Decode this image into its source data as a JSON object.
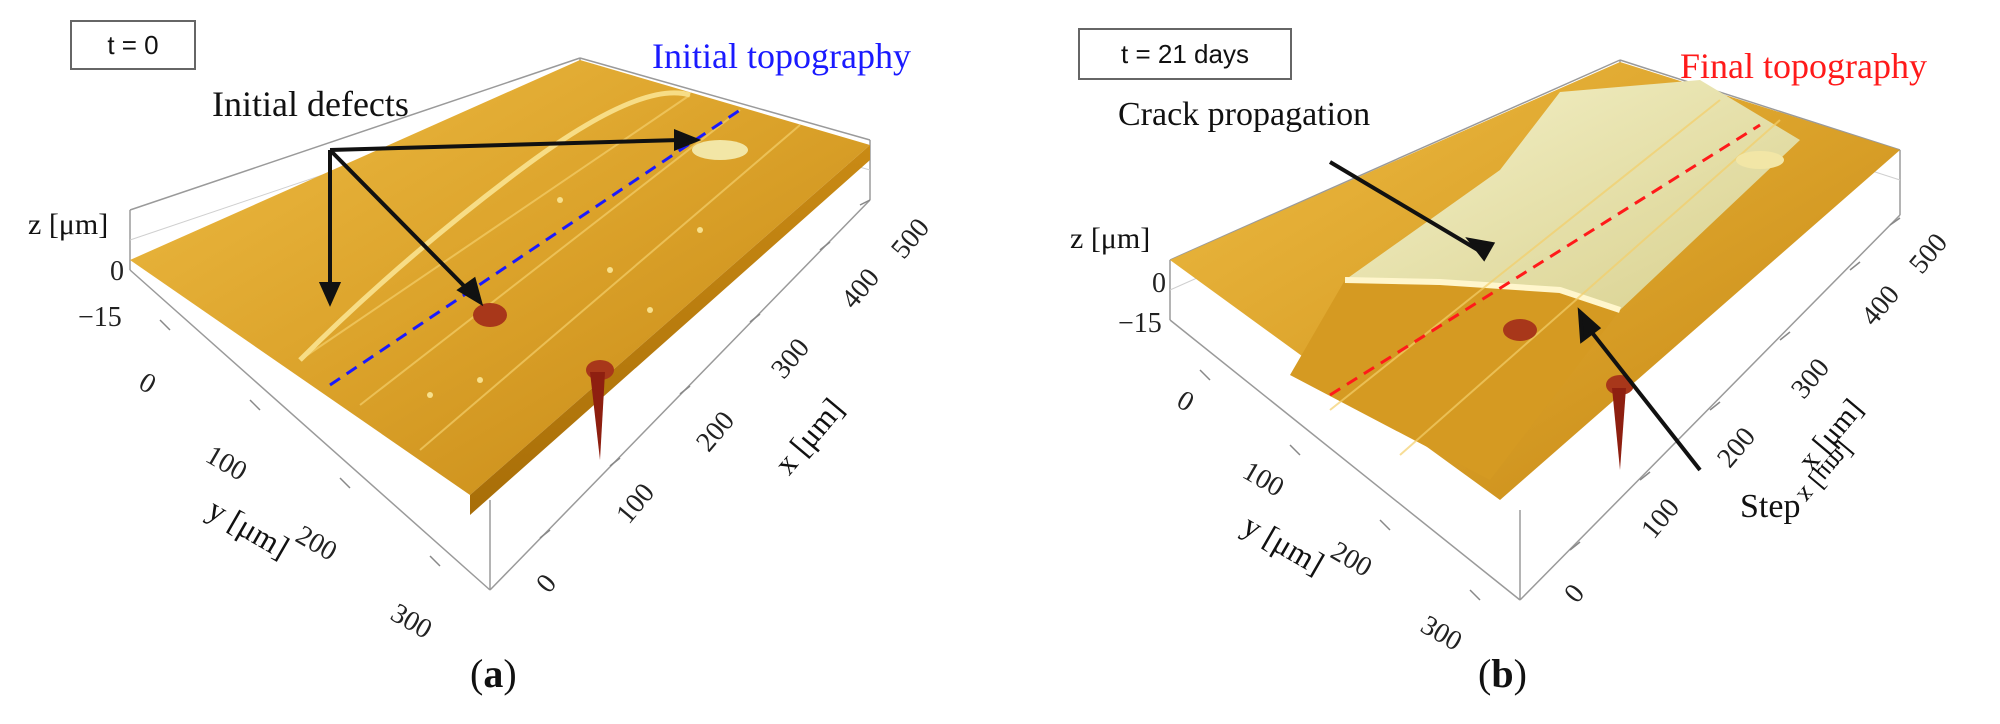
{
  "panels": [
    {
      "time_label": "t = 0",
      "topo_label": "Initial topography",
      "topo_color": "#1a1aff",
      "annotations": [
        "Initial defects"
      ],
      "z_axis": {
        "label": "z [μm]",
        "ticks": [
          "0",
          "−15"
        ]
      },
      "y_axis": {
        "label": "y [μm]",
        "ticks": [
          "0",
          "100",
          "200",
          "300"
        ]
      },
      "x_axis": {
        "label": "x [μm]",
        "ticks": [
          "0",
          "100",
          "200",
          "300",
          "400",
          "500"
        ]
      },
      "caption_letter": "a"
    },
    {
      "time_label": "t = 21 days",
      "topo_label": "Final topography",
      "topo_color": "#ff1a1a",
      "annotations": [
        "Crack propagation",
        "Step"
      ],
      "z_axis": {
        "label": "z [μm]",
        "ticks": [
          "0",
          "−15"
        ]
      },
      "y_axis": {
        "label": "y [μm]",
        "ticks": [
          "0",
          "100",
          "200",
          "300"
        ]
      },
      "x_axis": {
        "label": "x [μm]",
        "ticks": [
          "0",
          "100",
          "200",
          "300",
          "400",
          "500"
        ],
        "label_mirrored": "x [μm]"
      },
      "caption_letter": "b"
    }
  ],
  "colors": {
    "surface_light": "#e8b43a",
    "surface_mid": "#d49a22",
    "surface_dark": "#b87c10",
    "crack_face": "#ece9b0",
    "defect": "#a8371a"
  }
}
